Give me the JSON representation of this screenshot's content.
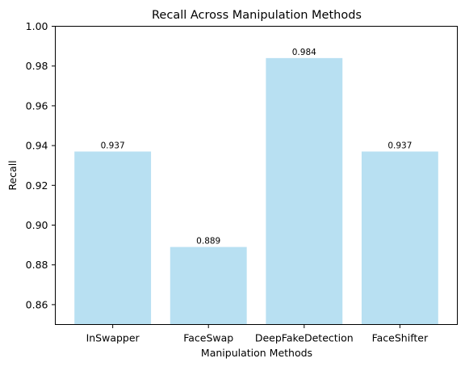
{
  "chart_data": {
    "type": "bar",
    "title": "Recall Across Manipulation Methods",
    "xlabel": "Manipulation Methods",
    "ylabel": "Recall",
    "categories": [
      "InSwapper",
      "FaceSwap",
      "DeepFakeDetection",
      "FaceShifter"
    ],
    "values": [
      0.937,
      0.889,
      0.984,
      0.937
    ],
    "value_labels": [
      "0.937",
      "0.889",
      "0.984",
      "0.937"
    ],
    "ylim": [
      0.85,
      1.0
    ],
    "yticks": [
      0.86,
      0.88,
      0.9,
      0.92,
      0.94,
      0.96,
      0.98,
      1.0
    ],
    "ytick_labels": [
      "0.86",
      "0.88",
      "0.90",
      "0.92",
      "0.94",
      "0.96",
      "0.98",
      "1.00"
    ],
    "grid": false,
    "bar_color": "#b8e0f2"
  }
}
